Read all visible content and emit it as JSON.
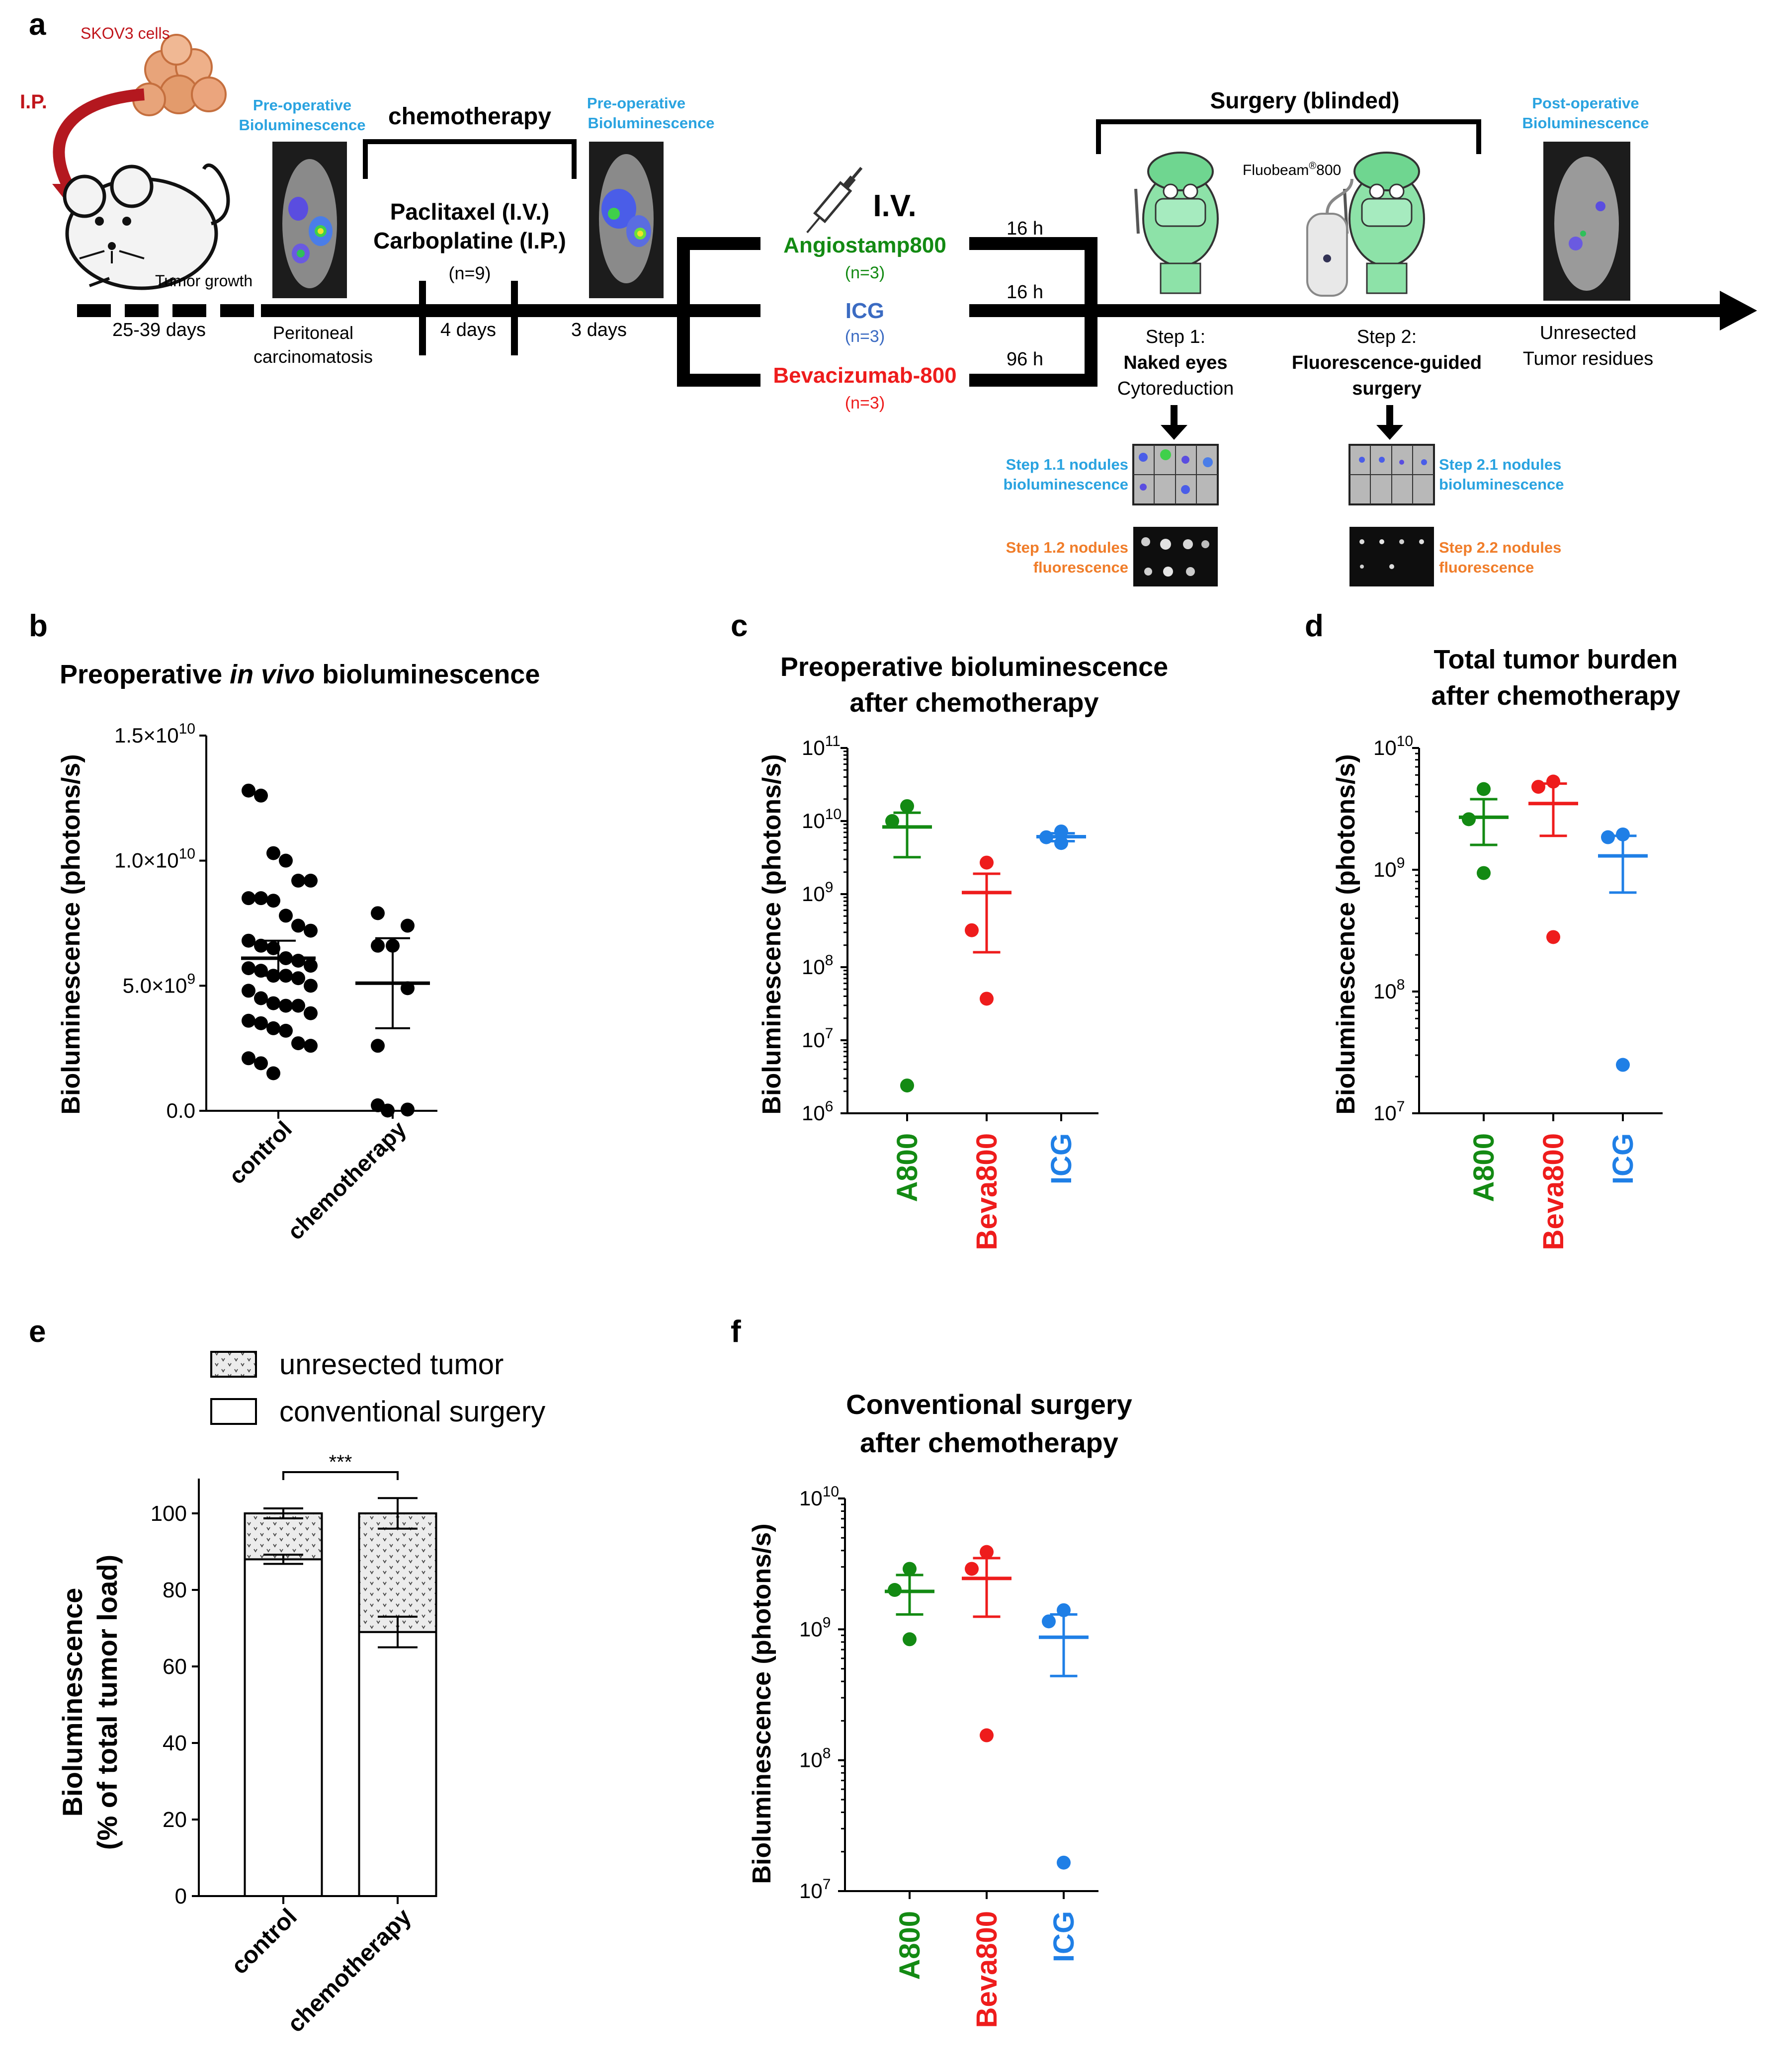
{
  "colors": {
    "green": "#138a13",
    "red": "#ee1c1c",
    "blue": "#1f7fe6",
    "cyan": "#2aa3e0",
    "orange": "#f07d2a",
    "dark": "#000000",
    "icgblue": "#3b6bc2",
    "maroon": "#c0151b"
  },
  "panel_a": {
    "letter": "a",
    "skov3_label": "SKOV3 cells",
    "ip_label": "I.P.",
    "tumor_growth": "Tumor growth",
    "days_25_39": "25-39 days",
    "preop_label_1": "Pre-operative",
    "preop_label_2": "Bioluminescence",
    "peritoneal_1": "Peritoneal",
    "peritoneal_2": "carcinomatosis",
    "chemotherapy": "chemotherapy",
    "paclitaxel": "Paclitaxel (I.V.)",
    "carboplatine": "Carboplatine (I.P.)",
    "n9": "(n=9)",
    "days_4": "4 days",
    "days_3": "3 days",
    "iv": "I.V.",
    "agents": [
      {
        "name": "Angiostamp800",
        "n": "(n=3)",
        "time": "16 h"
      },
      {
        "name": "ICG",
        "n": "(n=3)",
        "time": "16 h"
      },
      {
        "name": "Bevacizumab-800",
        "n": "(n=3)",
        "time": "96 h"
      }
    ],
    "surgery_title": "Surgery (blinded)",
    "fluobeam": "Fluobeam",
    "fluobeam_sup": "®",
    "fluobeam_num": "800",
    "step1_a": "Step 1:",
    "step1_b": "Naked eyes",
    "step1_c": "Cytoreduction",
    "step2_a": "Step 2:",
    "step2_b": "Fluorescence-guided",
    "step2_c": "surgery",
    "postop_1": "Post-operative",
    "postop_2": "Bioluminescence",
    "unresected_1": "Unresected",
    "unresected_2": "Tumor residues",
    "step11_1": "Step 1.1 nodules",
    "step11_2": "bioluminescence",
    "step12_1": "Step 1.2 nodules",
    "step12_2": "fluorescence",
    "step21_1": "Step 2.1 nodules",
    "step21_2": "bioluminescence",
    "step22_1": "Step 2.2 nodules",
    "step22_2": "fluorescence"
  },
  "chart_data": [
    {
      "id": "b",
      "letter": "b",
      "type": "scatter",
      "title_pre": "Preoperative ",
      "title_italic": "in vivo",
      "title_post": " bioluminescence",
      "ylabel": "Bioluminescence (photons/s)",
      "ylim": [
        0,
        15000000000.0
      ],
      "ytick_labels": [
        {
          "m": "0.0",
          "e": ""
        },
        {
          "m": "5.0×10",
          "e": "9"
        },
        {
          "m": "1.0×10",
          "e": "10"
        },
        {
          "m": "1.5×10",
          "e": "10"
        }
      ],
      "yticks": [
        0,
        5000000000.0,
        10000000000.0,
        15000000000.0
      ],
      "categories": [
        "control",
        "chemotherapy"
      ],
      "series": [
        {
          "name": "control",
          "color": "#000000",
          "mean": 6100000000.0,
          "sem_low": 5400000000.0,
          "sem_high": 6800000000.0,
          "values": [
            12800000000.0,
            12600000000.0,
            10300000000.0,
            10000000000.0,
            9200000000.0,
            9200000000.0,
            8500000000.0,
            8500000000.0,
            8400000000.0,
            7800000000.0,
            7400000000.0,
            7200000000.0,
            6800000000.0,
            6600000000.0,
            6500000000.0,
            6100000000.0,
            6000000000.0,
            5800000000.0,
            5700000000.0,
            5600000000.0,
            5400000000.0,
            5400000000.0,
            5300000000.0,
            5000000000.0,
            4800000000.0,
            4500000000.0,
            4300000000.0,
            4200000000.0,
            4200000000.0,
            3900000000.0,
            3600000000.0,
            3500000000.0,
            3300000000.0,
            3200000000.0,
            2700000000.0,
            2600000000.0,
            2100000000.0,
            1900000000.0,
            1500000000.0
          ]
        },
        {
          "name": "chemotherapy",
          "color": "#000000",
          "mean": 5100000000.0,
          "sem_low": 3300000000.0,
          "sem_high": 6900000000.0,
          "values": [
            7900000000.0,
            7400000000.0,
            6600000000.0,
            6600000000.0,
            4900000000.0,
            2600000000.0,
            220000000.0,
            50000000.0,
            10000000.0
          ]
        }
      ]
    },
    {
      "id": "c",
      "letter": "c",
      "type": "scatter",
      "title_1": "Preoperative bioluminescence",
      "title_2": "after chemotherapy",
      "ylabel": "Bioluminescence (photons/s)",
      "yscale": "log",
      "ylim": [
        1000000.0,
        100000000000.0
      ],
      "ytick_exp": [
        "6",
        "7",
        "8",
        "9",
        "10",
        "11"
      ],
      "categories": [
        "A800",
        "Beva800",
        "ICG"
      ],
      "series": [
        {
          "name": "A800",
          "color": "#138a13",
          "values": [
            16000000000.0,
            10000000000.0,
            2400000.0
          ],
          "mean": 8300000000.0,
          "sem_low": 3200000000.0,
          "sem_high": 13000000000.0
        },
        {
          "name": "Beva800",
          "color": "#ee1c1c",
          "values": [
            2700000000.0,
            320000000.0,
            37000000.0
          ],
          "mean": 1050000000.0,
          "sem_low": 160000000.0,
          "sem_high": 1900000000.0
        },
        {
          "name": "ICG",
          "color": "#1f7fe6",
          "values": [
            7200000000.0,
            6000000000.0,
            5000000000.0
          ],
          "mean": 6100000000.0,
          "sem_low": 5300000000.0,
          "sem_high": 6800000000.0
        }
      ]
    },
    {
      "id": "d",
      "letter": "d",
      "type": "scatter",
      "title_1": "Total tumor burden",
      "title_2": "after chemotherapy",
      "ylabel": "Bioluminescence (photons/s)",
      "yscale": "log",
      "ylim": [
        10000000.0,
        10000000000.0
      ],
      "ytick_exp": [
        "7",
        "8",
        "9",
        "10"
      ],
      "categories": [
        "A800",
        "Beva800",
        "ICG"
      ],
      "series": [
        {
          "name": "A800",
          "color": "#138a13",
          "values": [
            4600000000.0,
            2600000000.0,
            940000000.0
          ],
          "mean": 2700000000.0,
          "sem_low": 1600000000.0,
          "sem_high": 3800000000.0
        },
        {
          "name": "Beva800",
          "color": "#ee1c1c",
          "values": [
            5300000000.0,
            4800000000.0,
            280000000.0
          ],
          "mean": 3500000000.0,
          "sem_low": 1900000000.0,
          "sem_high": 5100000000.0
        },
        {
          "name": "ICG",
          "color": "#1f7fe6",
          "values": [
            1950000000.0,
            1850000000.0,
            25000000.0
          ],
          "mean": 1300000000.0,
          "sem_low": 650000000.0,
          "sem_high": 1900000000.0
        }
      ]
    },
    {
      "id": "e",
      "letter": "e",
      "type": "bar",
      "legend": [
        "unresected tumor",
        "conventional surgery"
      ],
      "ylabel_1": "Bioluminescence",
      "ylabel_2": "(% of total tumor load)",
      "ylim": [
        0,
        100
      ],
      "yticks": [
        0,
        20,
        40,
        60,
        80,
        100
      ],
      "categories": [
        "control",
        "chemotherapy"
      ],
      "significance": "***",
      "series": [
        {
          "name": "conventional surgery",
          "values": [
            88,
            69
          ],
          "err": [
            1.2,
            4
          ]
        },
        {
          "name": "unresected tumor",
          "values": [
            12,
            31
          ],
          "err": [
            1.3,
            4
          ]
        }
      ]
    },
    {
      "id": "f",
      "letter": "f",
      "type": "scatter",
      "title_1": "Conventional surgery",
      "title_2": "after chemotherapy",
      "ylabel": "Bioluminescence (photons/s)",
      "yscale": "log",
      "ylim": [
        10000000.0,
        10000000000.0
      ],
      "ytick_exp": [
        "7",
        "8",
        "9",
        "10"
      ],
      "categories": [
        "A800",
        "Beva800",
        "ICG"
      ],
      "series": [
        {
          "name": "A800",
          "color": "#138a13",
          "values": [
            2900000000.0,
            2000000000.0,
            840000000.0
          ],
          "mean": 1950000000.0,
          "sem_low": 1300000000.0,
          "sem_high": 2600000000.0
        },
        {
          "name": "Beva800",
          "color": "#ee1c1c",
          "values": [
            3900000000.0,
            2900000000.0,
            155000000.0
          ],
          "mean": 2450000000.0,
          "sem_low": 1250000000.0,
          "sem_high": 3500000000.0
        },
        {
          "name": "ICG",
          "color": "#1f7fe6",
          "values": [
            1400000000.0,
            1150000000.0,
            16500000.0
          ],
          "mean": 870000000.0,
          "sem_low": 440000000.0,
          "sem_high": 1300000000.0
        }
      ]
    }
  ]
}
